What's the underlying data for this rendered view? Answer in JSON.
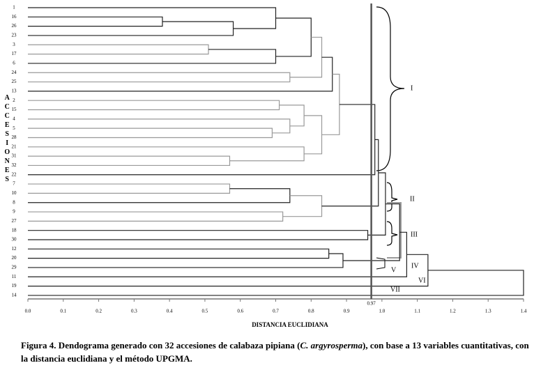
{
  "chart_data": {
    "type": "dendrogram",
    "y_label": "ACCESIONES",
    "x_label": "DISTANCIA EUCLIDIANA",
    "xlim": [
      0,
      1.4
    ],
    "xticks": [
      {
        "value": 0,
        "label": "0.0"
      },
      0.1,
      0.2,
      0.3,
      0.4,
      0.5,
      0.6,
      0.7,
      0.8,
      0.9,
      {
        "value": 1,
        "label": "1.0"
      },
      1.1,
      1.2,
      1.3,
      1.4
    ],
    "cutoff": 0.97,
    "groups": [
      "I",
      "II",
      "III",
      "IV",
      "V",
      "VI",
      "VII"
    ],
    "tree": {
      "height": 1.4,
      "children": [
        {
          "height": 1.13,
          "children": [
            {
              "height": 1.07,
              "children": [
                {
                  "height": 1.05,
                  "children": [
                    {
                      "height": 1.01,
                      "children": [
                        {
                          "height": 0.99,
                          "children": [
                            {
                              "height": 0.98,
                              "children": [
                                {
                                  "height": 0.88,
                                  "children": [
                                    {
                                      "height": 0.86,
                                      "children": [
                                        {
                                          "height": 0.83,
                                          "children": [
                                            {
                                              "height": 0.8,
                                              "children": [
                                                {
                                                  "height": 0.7,
                                                  "children": [
                                                    "1",
                                                    {
                                                      "height": 0.58,
                                                      "children": [
                                                        {
                                                          "height": 0.38,
                                                          "children": [
                                                            "16",
                                                            "26"
                                                          ]
                                                        },
                                                        "23"
                                                      ]
                                                    }
                                                  ]
                                                },
                                                {
                                                  "height": 0.7,
                                                  "children": [
                                                    {
                                                      "height": 0.51,
                                                      "children": [
                                                        "3",
                                                        "17"
                                                      ]
                                                    },
                                                    "6"
                                                  ]
                                                }
                                              ]
                                            },
                                            {
                                              "height": 0.74,
                                              "children": [
                                                "24",
                                                "25"
                                              ]
                                            }
                                          ]
                                        },
                                        "13"
                                      ]
                                    },
                                    {
                                      "height": 0.83,
                                      "children": [
                                        {
                                          "height": 0.78,
                                          "children": [
                                            {
                                              "height": 0.71,
                                              "children": [
                                                "2",
                                                "15"
                                              ]
                                            },
                                            {
                                              "height": 0.74,
                                              "children": [
                                                "4",
                                                {
                                                  "height": 0.69,
                                                  "children": [
                                                    "5",
                                                    "28"
                                                  ]
                                                }
                                              ]
                                            }
                                          ]
                                        },
                                        {
                                          "height": 0.78,
                                          "children": [
                                            "21",
                                            {
                                              "height": 0.57,
                                              "children": [
                                                "31",
                                                "32"
                                              ]
                                            }
                                          ]
                                        }
                                      ]
                                    }
                                  ]
                                },
                                "22"
                              ]
                            },
                            {
                              "height": 0.83,
                              "children": [
                                {
                                  "height": 0.74,
                                  "children": [
                                    {
                                      "height": 0.57,
                                      "children": [
                                        "7",
                                        "10"
                                      ]
                                    },
                                    "8"
                                  ]
                                },
                                {
                                  "height": 0.72,
                                  "children": [
                                    "9",
                                    "27"
                                  ]
                                }
                              ]
                            }
                          ]
                        },
                        {
                          "height": 0.96,
                          "children": [
                            "18",
                            "30"
                          ]
                        }
                      ]
                    },
                    {
                      "height": 0.89,
                      "children": [
                        {
                          "height": 0.85,
                          "children": [
                            "12",
                            "20"
                          ]
                        },
                        "29"
                      ]
                    }
                  ]
                },
                "11"
              ]
            },
            "19"
          ]
        },
        "14"
      ]
    }
  },
  "caption": {
    "before": "Figura 4. Dendograma generado con 32 accesiones de calabaza pipiana (",
    "italic": "C. argyrosperma",
    "after": "), con base a 13 variables cuantitativas, con la distancia euclidiana y el método UPGMA."
  }
}
